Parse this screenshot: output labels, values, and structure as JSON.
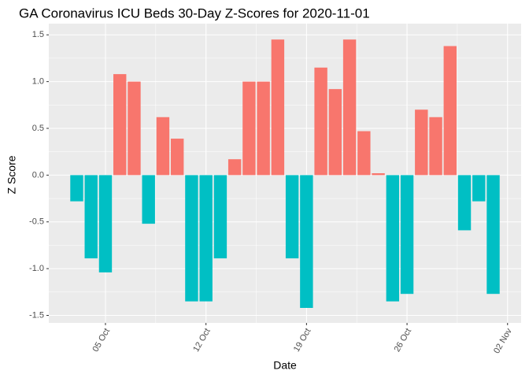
{
  "chart_data": {
    "type": "bar",
    "title": "GA Coronavirus ICU Beds 30-Day Z-Scores for 2020-11-01",
    "x_label": "Date",
    "y_label": "Z Score",
    "x": [
      "03 Oct",
      "04 Oct",
      "05 Oct",
      "06 Oct",
      "07 Oct",
      "08 Oct",
      "09 Oct",
      "10 Oct",
      "11 Oct",
      "12 Oct",
      "13 Oct",
      "14 Oct",
      "15 Oct",
      "16 Oct",
      "17 Oct",
      "18 Oct",
      "19 Oct",
      "20 Oct",
      "21 Oct",
      "22 Oct",
      "23 Oct",
      "24 Oct",
      "25 Oct",
      "26 Oct",
      "27 Oct",
      "28 Oct",
      "29 Oct",
      "30 Oct",
      "31 Oct",
      "01 Nov"
    ],
    "values": [
      -0.28,
      -0.89,
      -1.04,
      1.08,
      1.0,
      -0.52,
      0.62,
      0.39,
      -1.35,
      -1.35,
      -0.89,
      0.17,
      1.0,
      1.0,
      1.45,
      -0.89,
      -1.42,
      1.15,
      0.92,
      1.45,
      0.47,
      0.02,
      -1.35,
      -1.27,
      0.7,
      0.62,
      1.38,
      -0.59,
      -0.28,
      -1.27
    ],
    "positive_color": "#F8766D",
    "negative_color": "#00BFC4",
    "xticks": [
      "05 Oct",
      "12 Oct",
      "19 Oct",
      "26 Oct",
      "02 Nov"
    ],
    "ylim": [
      -1.58,
      1.62
    ],
    "yticks": [
      -1.5,
      {
        "value": -1,
        "label": "-1.0"
      },
      -0.5,
      {
        "value": 0,
        "label": "0.0"
      },
      0.5,
      {
        "value": 1,
        "label": "1.0"
      },
      1.5
    ],
    "grid": true
  }
}
